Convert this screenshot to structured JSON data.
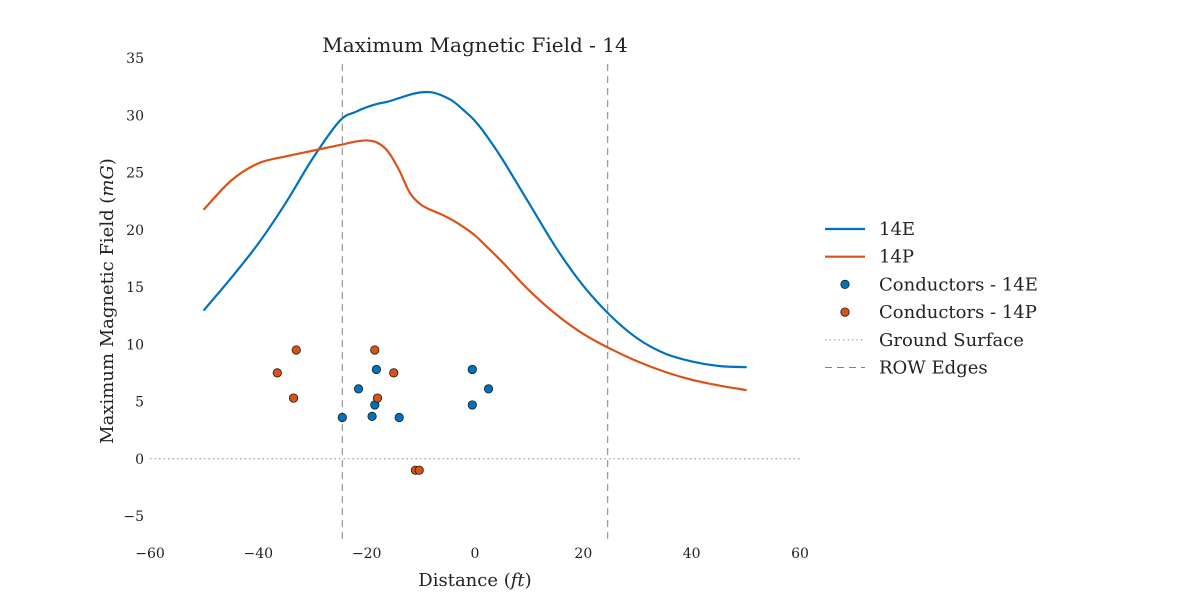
{
  "chart_data": {
    "type": "line",
    "title": "Maximum Magnetic Field - 14",
    "xlabel": "Distance",
    "xlabel_unit": "ft",
    "ylabel": "Maximum Magnetic Field",
    "ylabel_unit": "mG",
    "xlim": [
      -60,
      60
    ],
    "ylim": [
      -7,
      35
    ],
    "x_ticks": [
      -60,
      -40,
      -20,
      0,
      20,
      40,
      60
    ],
    "x_tick_labels": [
      "−60",
      "−40",
      "−20",
      "0",
      "20",
      "40",
      "60"
    ],
    "y_ticks": [
      -5,
      0,
      5,
      10,
      15,
      20,
      25,
      30,
      35
    ],
    "y_tick_labels": [
      "−5",
      "0",
      "5",
      "10",
      "15",
      "20",
      "25",
      "30",
      "35"
    ],
    "grid": false,
    "legend_position": "right",
    "series": [
      {
        "name": "14E",
        "color": "#0072BD",
        "x": [
          -50,
          -45,
          -40,
          -35,
          -30,
          -25,
          -22,
          -20,
          -18,
          -16,
          -14,
          -12,
          -10,
          -8,
          -6,
          -4,
          -2,
          0,
          2,
          5,
          10,
          15,
          20,
          25,
          30,
          35,
          40,
          45,
          50
        ],
        "y": [
          13.0,
          15.8,
          18.8,
          22.3,
          26.2,
          29.5,
          30.3,
          30.7,
          31.0,
          31.2,
          31.5,
          31.8,
          32.0,
          32.0,
          31.7,
          31.2,
          30.4,
          29.5,
          28.3,
          26.2,
          22.3,
          18.4,
          15.1,
          12.5,
          10.5,
          9.2,
          8.5,
          8.1,
          8.0
        ]
      },
      {
        "name": "14P",
        "color": "#D95319",
        "x": [
          -50,
          -45,
          -40,
          -35,
          -30,
          -25,
          -22,
          -20,
          -18,
          -16,
          -14,
          -12,
          -10,
          -8,
          -6,
          -4,
          -2,
          0,
          2,
          5,
          10,
          15,
          20,
          25,
          30,
          35,
          40,
          45,
          50
        ],
        "y": [
          21.8,
          24.3,
          25.8,
          26.4,
          26.9,
          27.4,
          27.7,
          27.8,
          27.6,
          26.8,
          25.2,
          23.2,
          22.2,
          21.7,
          21.3,
          20.8,
          20.2,
          19.5,
          18.6,
          17.2,
          14.7,
          12.6,
          10.9,
          9.6,
          8.5,
          7.6,
          6.9,
          6.4,
          6.0
        ]
      },
      {
        "name": "Conductors - 14E",
        "type": "scatter",
        "color": "#0072BD",
        "x": [
          -24.5,
          -21.5,
          -19.0,
          -18.5,
          -18.2,
          -14.0,
          -0.5,
          -0.5,
          2.5
        ],
        "y": [
          3.6,
          6.1,
          3.7,
          4.7,
          7.8,
          3.6,
          7.8,
          4.7,
          6.1
        ]
      },
      {
        "name": "Conductors - 14P",
        "type": "scatter",
        "color": "#D95319",
        "x": [
          -36.5,
          -33.5,
          -33.0,
          -18.5,
          -18.0,
          -15.0,
          -11.0,
          -10.3
        ],
        "y": [
          7.5,
          5.3,
          9.5,
          9.5,
          5.3,
          7.5,
          -1.0,
          -1.0
        ]
      },
      {
        "name": "Ground Surface",
        "type": "hline",
        "style": "dotted",
        "color": "#a0a0a0",
        "y": 0,
        "x_range": [
          -60,
          60
        ]
      },
      {
        "name": "ROW Edges",
        "type": "vlines",
        "style": "dashed",
        "color": "#808080",
        "x": [
          -24.5,
          24.5
        ]
      }
    ]
  }
}
